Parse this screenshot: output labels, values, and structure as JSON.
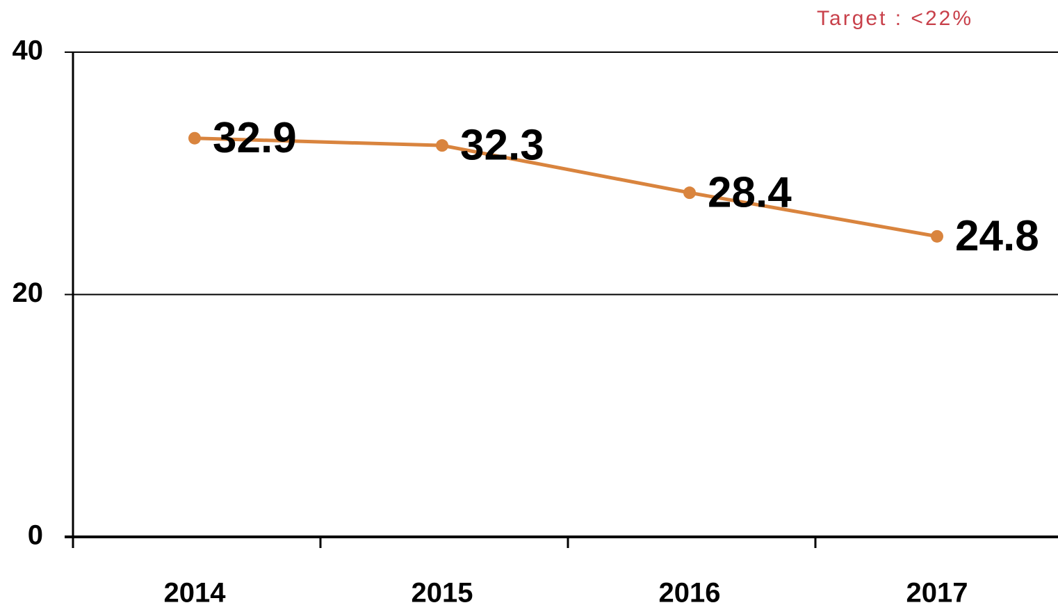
{
  "chart_data": {
    "type": "line",
    "annotation": "Target : <22%",
    "categories": [
      "2014",
      "2015",
      "2016",
      "2017"
    ],
    "series": [
      {
        "name": null,
        "color": "#d9843e",
        "values": [
          32.9,
          32.3,
          28.4,
          24.8
        ]
      }
    ],
    "ylim": [
      0,
      40
    ],
    "yticks": [
      0,
      20,
      40
    ],
    "grid": true
  }
}
